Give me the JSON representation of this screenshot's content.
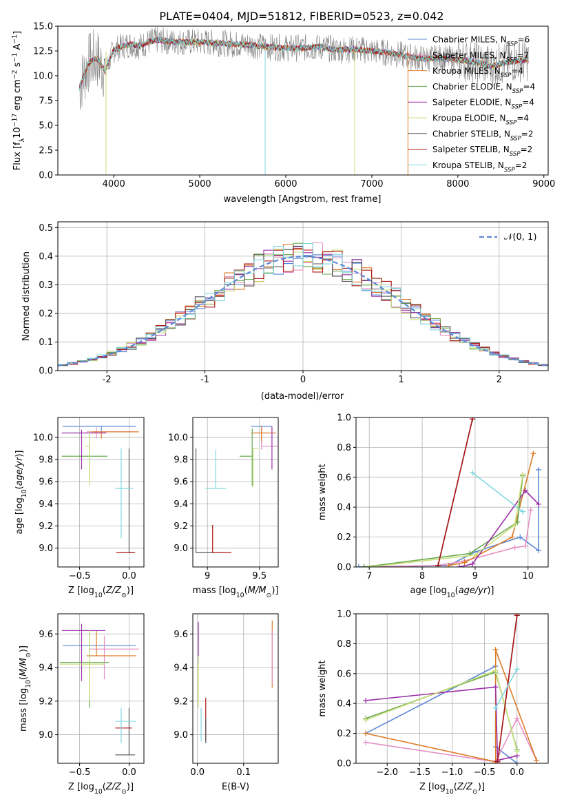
{
  "figure": {
    "title": "PLATE=0404, MJD=51812, FIBERID=0523, z=0.042"
  },
  "colors": {
    "chabrier_miles": "#5b87d6",
    "salpeter_miles": "#e58fc3",
    "kroupa_miles": "#dd7a25",
    "chabrier_elodie": "#6aa84f",
    "salpeter_elodie": "#9b2fa8",
    "kroupa_elodie": "#c8e07a",
    "chabrier_stelib": "#555555",
    "salpeter_stelib": "#b01515",
    "kroupa_stelib": "#7fd8df",
    "observed": "#808080",
    "normal": "#5b87d6",
    "grid": "#b0b0b0"
  },
  "chart_data": [
    {
      "id": "spectrum",
      "type": "line",
      "title": "PLATE=0404, MJD=51812, FIBERID=0523, z=0.042",
      "xlabel": "wavelength [Angstrom, rest frame]",
      "ylabel": "Flux [f_λ 10^-17 erg cm^-2 s^-1 A^-1]",
      "xlim": [
        3350,
        9050
      ],
      "ylim": [
        0,
        15
      ],
      "xticks": [
        4000,
        5000,
        6000,
        7000,
        8000,
        9000
      ],
      "yticks": [
        0.0,
        2.5,
        5.0,
        7.5,
        10.0,
        12.5,
        15.0
      ],
      "grid": false,
      "legend_position": "right",
      "legend": [
        {
          "label": "Chabrier MILES, N",
          "sub": "SSP",
          "suffix": "=6",
          "color_key": "chabrier_miles"
        },
        {
          "label": "Salpeter MILES, N",
          "sub": "SSP",
          "suffix": "=7",
          "color_key": "salpeter_miles"
        },
        {
          "label": "Kroupa MILES, N",
          "sub": "SSP",
          "suffix": "=4",
          "color_key": "kroupa_miles"
        },
        {
          "label": "Chabrier ELODIE, N",
          "sub": "SSP",
          "suffix": "=4",
          "color_key": "chabrier_elodie"
        },
        {
          "label": "Salpeter ELODIE, N",
          "sub": "SSP",
          "suffix": "=4",
          "color_key": "salpeter_elodie"
        },
        {
          "label": "Kroupa ELODIE, N",
          "sub": "SSP",
          "suffix": "=4",
          "color_key": "kroupa_elodie"
        },
        {
          "label": "Chabrier STELIB, N",
          "sub": "SSP",
          "suffix": "=2",
          "color_key": "chabrier_stelib"
        },
        {
          "label": "Salpeter STELIB, N",
          "sub": "SSP",
          "suffix": "=2",
          "color_key": "salpeter_stelib"
        },
        {
          "label": "Kroupa STELIB, N",
          "sub": "SSP",
          "suffix": "=2",
          "color_key": "kroupa_stelib"
        }
      ],
      "model_x": [
        3600,
        3700,
        3800,
        3900,
        4000,
        4100,
        4200,
        4300,
        4400,
        4500,
        4600,
        4800,
        5000,
        5200,
        5400,
        5600,
        5800,
        6000,
        6200,
        6400,
        6600,
        6800,
        7000,
        7200,
        7400,
        7600,
        7800,
        8000,
        8200,
        8400,
        8600,
        8800
      ],
      "model_y": [
        8.8,
        11.2,
        11.8,
        10.5,
        12.6,
        13.0,
        13.2,
        13.0,
        13.4,
        13.6,
        13.5,
        13.4,
        13.4,
        13.3,
        13.2,
        13.1,
        12.9,
        12.8,
        12.8,
        12.9,
        12.6,
        12.7,
        12.5,
        12.3,
        12.0,
        11.7,
        11.8,
        11.6,
        11.4,
        11.0,
        11.4,
        11.6
      ],
      "observed_noise": "high"
    },
    {
      "id": "residuals",
      "type": "histogram",
      "xlabel": "(data-model)/error",
      "ylabel": "Normed distribution",
      "xlim": [
        -2.5,
        2.5
      ],
      "ylim": [
        0,
        0.52
      ],
      "xticks": [
        -2,
        -1,
        0,
        1,
        2
      ],
      "yticks": [
        0.0,
        0.1,
        0.2,
        0.3,
        0.4,
        0.5
      ],
      "grid": true,
      "legend": [
        {
          "label": "𝒩(0, 1)",
          "color_key": "normal",
          "dashed": true
        }
      ],
      "legend_position": "upper right",
      "bin_width": 0.1,
      "curve": "normal(0,1) pdf"
    },
    {
      "id": "age_vs_z",
      "type": "errorbar",
      "xlabel": "Z [log10(Z/Z⊙)]",
      "ylabel": "age [log10(age/yr)]",
      "xlim": [
        -0.72,
        0.15
      ],
      "ylim": [
        8.83,
        10.18
      ],
      "xticks": [
        -0.5,
        0.0
      ],
      "xticklabels": [
        "−0.5",
        "0.0"
      ],
      "yticks": [
        9.0,
        9.2,
        9.4,
        9.6,
        9.8,
        10.0
      ],
      "grid": true,
      "points": [
        {
          "x": -0.28,
          "y": 10.1,
          "xerr": [
            0.39,
            0.35
          ],
          "yerr": [
            0.05,
            0.0
          ],
          "color_key": "chabrier_miles"
        },
        {
          "x": -0.33,
          "y": 10.05,
          "xerr": [
            0.1,
            0.4
          ],
          "yerr": [
            0.06,
            0.04
          ],
          "color_key": "salpeter_miles"
        },
        {
          "x": -0.28,
          "y": 10.05,
          "xerr": [
            0.1,
            0.38
          ],
          "yerr": [
            0.06,
            0.0
          ],
          "color_key": "kroupa_miles"
        },
        {
          "x": -0.4,
          "y": 9.83,
          "xerr": [
            0.28,
            0.18
          ],
          "yerr": [
            0.2,
            0.23
          ],
          "color_key": "chabrier_elodie"
        },
        {
          "x": -0.48,
          "y": 10.04,
          "xerr": [
            0.2,
            0.25
          ],
          "yerr": [
            0.33,
            0.03
          ],
          "color_key": "salpeter_elodie"
        },
        {
          "x": -0.4,
          "y": 9.92,
          "xerr": [
            0.04,
            0.0
          ],
          "yerr": [
            0.36,
            0.15
          ],
          "color_key": "kroupa_elodie"
        },
        {
          "x": 0.0,
          "y": 8.96,
          "xerr": [
            0.03,
            0.06
          ],
          "yerr": [
            0.0,
            0.94
          ],
          "color_key": "chabrier_stelib"
        },
        {
          "x": 0.0,
          "y": 8.96,
          "xerr": [
            0.13,
            0.06
          ],
          "yerr": [
            0.0,
            0.0
          ],
          "color_key": "salpeter_stelib"
        },
        {
          "x": -0.08,
          "y": 9.54,
          "xerr": [
            0.06,
            0.12
          ],
          "yerr": [
            0.45,
            0.36
          ],
          "color_key": "kroupa_stelib"
        }
      ]
    },
    {
      "id": "age_vs_mass",
      "type": "errorbar",
      "xlabel": "mass [log10(M/M⊙)]",
      "xlim": [
        8.86,
        9.68
      ],
      "ylim": [
        8.83,
        10.18
      ],
      "xticks": [
        9.0,
        9.5
      ],
      "yticks": [
        9.0,
        9.2,
        9.4,
        9.6,
        9.8,
        10.0
      ],
      "grid": true,
      "points": [
        {
          "x": 9.5,
          "y": 10.1,
          "xerr": [
            0.08,
            0.12
          ],
          "yerr": [
            0.0,
            0.0
          ],
          "color_key": "chabrier_miles"
        },
        {
          "x": 9.52,
          "y": 9.92,
          "xerr": [
            0.0,
            0.18
          ],
          "yerr": [
            0.03,
            0.18
          ],
          "color_key": "salpeter_miles"
        },
        {
          "x": 9.52,
          "y": 10.04,
          "xerr": [
            0.1,
            0.14
          ],
          "yerr": [
            0.08,
            0.06
          ],
          "color_key": "kroupa_miles"
        },
        {
          "x": 9.43,
          "y": 9.83,
          "xerr": [
            0.12,
            0.0
          ],
          "yerr": [
            0.27,
            0.25
          ],
          "color_key": "chabrier_elodie"
        },
        {
          "x": 9.62,
          "y": 10.04,
          "xerr": [
            0.0,
            0.0
          ],
          "yerr": [
            0.33,
            0.06
          ],
          "color_key": "salpeter_elodie"
        },
        {
          "x": 9.44,
          "y": 9.9,
          "xerr": [
            0.0,
            0.05
          ],
          "yerr": [
            0.35,
            0.0
          ],
          "color_key": "kroupa_elodie"
        },
        {
          "x": 8.89,
          "y": 8.96,
          "xerr": [
            0.0,
            0.17
          ],
          "yerr": [
            0.0,
            0.94
          ],
          "color_key": "chabrier_stelib"
        },
        {
          "x": 9.05,
          "y": 8.96,
          "xerr": [
            0.0,
            0.18
          ],
          "yerr": [
            0.0,
            0.25
          ],
          "color_key": "salpeter_stelib"
        },
        {
          "x": 9.08,
          "y": 9.54,
          "xerr": [
            0.1,
            0.1
          ],
          "yerr": [
            0.0,
            0.35
          ],
          "color_key": "kroupa_stelib"
        }
      ]
    },
    {
      "id": "weight_vs_age",
      "type": "line",
      "xlabel": "age [log10(age/yr)]",
      "ylabel": "mass weight",
      "xlim": [
        6.75,
        10.38
      ],
      "ylim": [
        0,
        1.0
      ],
      "xticks": [
        7,
        8,
        9,
        10
      ],
      "yticks": [
        0.0,
        0.2,
        0.4,
        0.6,
        0.8,
        1.0
      ],
      "grid": true,
      "series": [
        {
          "color_key": "chabrier_miles",
          "x": [
            6.8,
            8.5,
            9.0,
            9.85,
            10.2,
            10.2
          ],
          "y": [
            0.0,
            0.01,
            0.1,
            0.2,
            0.11,
            0.65
          ]
        },
        {
          "color_key": "salpeter_miles",
          "x": [
            6.9,
            8.3,
            8.8,
            9.75,
            9.95,
            10.05
          ],
          "y": [
            0.0,
            0.01,
            0.04,
            0.13,
            0.14,
            0.38
          ]
        },
        {
          "color_key": "kroupa_miles",
          "x": [
            8.5,
            8.8,
            9.7,
            10.1
          ],
          "y": [
            0.01,
            0.03,
            0.2,
            0.76
          ]
        },
        {
          "color_key": "chabrier_elodie",
          "x": [
            6.9,
            8.9,
            9.8,
            9.9
          ],
          "y": [
            0.0,
            0.09,
            0.3,
            0.61
          ]
        },
        {
          "color_key": "salpeter_elodie",
          "x": [
            8.7,
            8.95,
            9.95,
            10.2
          ],
          "y": [
            0.0,
            0.02,
            0.51,
            0.42
          ]
        },
        {
          "color_key": "kroupa_elodie",
          "x": [
            7.0,
            9.0,
            9.75,
            9.9
          ],
          "y": [
            0.0,
            0.08,
            0.28,
            0.62
          ]
        },
        {
          "color_key": "chabrier_stelib",
          "x": [
            8.3,
            8.95
          ],
          "y": [
            0.01,
            0.99
          ]
        },
        {
          "color_key": "salpeter_stelib",
          "x": [
            8.3,
            8.95
          ],
          "y": [
            0.01,
            0.99
          ]
        },
        {
          "color_key": "kroupa_stelib",
          "x": [
            8.95,
            9.9
          ],
          "y": [
            0.63,
            0.37
          ]
        }
      ]
    },
    {
      "id": "mass_vs_z",
      "type": "errorbar",
      "xlabel": "Z [log10(Z/Z⊙)]",
      "ylabel": "mass [log10(M/M⊙)]",
      "xlim": [
        -0.72,
        0.15
      ],
      "ylim": [
        8.83,
        9.72
      ],
      "xticks": [
        -0.5,
        0.0
      ],
      "xticklabels": [
        "−0.5",
        "0.0"
      ],
      "yticks": [
        9.0,
        9.2,
        9.4,
        9.6
      ],
      "grid": true,
      "points": [
        {
          "x": -0.28,
          "y": 9.53,
          "xerr": [
            0.39,
            0.35
          ],
          "yerr": [
            0.0,
            0.0
          ],
          "color_key": "chabrier_miles"
        },
        {
          "x": -0.25,
          "y": 9.51,
          "xerr": [
            0.15,
            0.35
          ],
          "yerr": [
            0.18,
            0.08
          ],
          "color_key": "salpeter_miles"
        },
        {
          "x": -0.33,
          "y": 9.47,
          "xerr": [
            0.1,
            0.4
          ],
          "yerr": [
            0.0,
            0.15
          ],
          "color_key": "kroupa_miles"
        },
        {
          "x": -0.4,
          "y": 9.43,
          "xerr": [
            0.3,
            0.2
          ],
          "yerr": [
            0.27,
            0.19
          ],
          "color_key": "chabrier_elodie"
        },
        {
          "x": -0.48,
          "y": 9.62,
          "xerr": [
            0.2,
            0.24
          ],
          "yerr": [
            0.3,
            0.04
          ],
          "color_key": "salpeter_elodie"
        },
        {
          "x": -0.4,
          "y": 9.42,
          "xerr": [
            0.3,
            0.15
          ],
          "yerr": [
            0.22,
            0.2
          ],
          "color_key": "kroupa_elodie"
        },
        {
          "x": 0.0,
          "y": 8.88,
          "xerr": [
            0.14,
            0.06
          ],
          "yerr": [
            0.0,
            0.28
          ],
          "color_key": "chabrier_stelib"
        },
        {
          "x": -0.03,
          "y": 9.04,
          "xerr": [
            0.11,
            0.06
          ],
          "yerr": [
            0.0,
            0.0
          ],
          "color_key": "salpeter_stelib"
        },
        {
          "x": -0.08,
          "y": 9.08,
          "xerr": [
            0.06,
            0.15
          ],
          "yerr": [
            0.13,
            0.08
          ],
          "color_key": "kroupa_stelib"
        }
      ]
    },
    {
      "id": "mass_vs_ebv",
      "type": "errorbar",
      "xlabel": "E(B-V)",
      "xlim": [
        -0.01,
        0.175
      ],
      "ylim": [
        8.83,
        9.72
      ],
      "xticks": [
        0.0,
        0.1
      ],
      "yticks": [
        9.0,
        9.2,
        9.4,
        9.6
      ],
      "grid": true,
      "points": [
        {
          "x": 0.002,
          "y": 9.6,
          "xerr": [
            0,
            0
          ],
          "yerr": [
            0.18,
            0.07
          ],
          "color_key": "salpeter_elodie"
        },
        {
          "x": 0.002,
          "y": 9.35,
          "xerr": [
            0,
            0
          ],
          "yerr": [
            0.19,
            0.12
          ],
          "color_key": "kroupa_elodie"
        },
        {
          "x": 0.008,
          "y": 9.05,
          "xerr": [
            0,
            0
          ],
          "yerr": [
            0.09,
            0.11
          ],
          "color_key": "kroupa_stelib"
        },
        {
          "x": 0.018,
          "y": 9.05,
          "xerr": [
            0,
            0
          ],
          "yerr": [
            0.08,
            0.17
          ],
          "color_key": "salpeter_stelib"
        },
        {
          "x": 0.018,
          "y": 8.95,
          "xerr": [
            0,
            0
          ],
          "yerr": [
            0.0,
            0.15
          ],
          "color_key": "chabrier_stelib"
        },
        {
          "x": 0.162,
          "y": 9.5,
          "xerr": [
            0,
            0
          ],
          "yerr": [
            0.22,
            0.18
          ],
          "color_key": "kroupa_miles"
        },
        {
          "x": 0.162,
          "y": 9.48,
          "xerr": [
            0,
            0
          ],
          "yerr": [
            0.18,
            0.14
          ],
          "color_key": "salpeter_miles"
        }
      ]
    },
    {
      "id": "weight_vs_z",
      "type": "line",
      "xlabel": "Z [log10(Z/Z⊙)]",
      "ylabel": "mass weight",
      "xlim": [
        -2.48,
        0.48
      ],
      "ylim": [
        0,
        1.0
      ],
      "xticks": [
        -2.0,
        -1.5,
        -1.0,
        -0.5,
        0.0
      ],
      "xticklabels": [
        "−2.0",
        "−1.5",
        "−1.0",
        "−0.5",
        "0.0"
      ],
      "yticks": [
        0.0,
        0.2,
        0.4,
        0.6,
        0.8,
        1.0
      ],
      "grid": true,
      "series": [
        {
          "color_key": "chabrier_miles",
          "x": [
            -2.33,
            -0.33,
            -0.33,
            0.0
          ],
          "y": [
            0.2,
            0.65,
            0.11,
            0.0
          ]
        },
        {
          "color_key": "salpeter_miles",
          "x": [
            -2.33,
            -0.33,
            0.0,
            0.3
          ],
          "y": [
            0.14,
            0.01,
            0.3,
            0.02
          ]
        },
        {
          "color_key": "kroupa_miles",
          "x": [
            -2.33,
            -0.33,
            -0.33,
            0.3
          ],
          "y": [
            0.2,
            0.01,
            0.76,
            0.02
          ]
        },
        {
          "color_key": "chabrier_elodie",
          "x": [
            -2.33,
            -0.33,
            0.0
          ],
          "y": [
            0.3,
            0.61,
            0.09
          ]
        },
        {
          "color_key": "salpeter_elodie",
          "x": [
            -2.33,
            -0.33,
            -0.3,
            0.0
          ],
          "y": [
            0.42,
            0.51,
            0.02,
            0.05
          ]
        },
        {
          "color_key": "kroupa_elodie",
          "x": [
            -2.33,
            -0.33,
            0.0
          ],
          "y": [
            0.29,
            0.62,
            0.08
          ]
        },
        {
          "color_key": "chabrier_stelib",
          "x": [
            -0.3,
            0.0
          ],
          "y": [
            0.01,
            0.99
          ]
        },
        {
          "color_key": "salpeter_stelib",
          "x": [
            -0.3,
            0.0
          ],
          "y": [
            0.01,
            0.99
          ]
        },
        {
          "color_key": "kroupa_stelib",
          "x": [
            -0.33,
            0.0
          ],
          "y": [
            0.37,
            0.63
          ]
        }
      ]
    }
  ]
}
